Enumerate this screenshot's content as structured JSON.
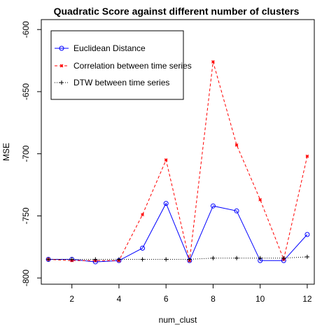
{
  "chart_data": {
    "type": "line",
    "title": "Quadratic Score against different number of clusters",
    "xlabel": "num_clust",
    "ylabel": "MSE",
    "xlim": [
      0.7,
      12.3
    ],
    "ylim": [
      -805,
      -592
    ],
    "xticks": [
      2,
      4,
      6,
      8,
      10,
      12
    ],
    "yticks": [
      -800,
      -750,
      -700,
      -650,
      -600
    ],
    "legend_position": "top-left",
    "x": [
      1,
      2,
      3,
      4,
      5,
      6,
      7,
      8,
      9,
      10,
      11,
      12
    ],
    "series": [
      {
        "name": "Euclidean Distance",
        "color": "#0000ff",
        "line": "solid",
        "marker": "circle",
        "values": [
          -785,
          -785,
          -787,
          -786,
          -776,
          -740,
          -786,
          -742,
          -746,
          -786,
          -786,
          -765
        ]
      },
      {
        "name": "Correlation between time series",
        "color": "#ff0000",
        "line": "dashed",
        "marker": "star",
        "values": [
          -785,
          -786,
          -786,
          -786,
          -749,
          -705,
          -786,
          -626,
          -693,
          -737,
          -785,
          -702
        ]
      },
      {
        "name": "DTW between time series",
        "color": "#000000",
        "line": "dotted",
        "marker": "plus",
        "values": [
          -785,
          -785,
          -785,
          -785,
          -785,
          -785,
          -785,
          -784,
          -784,
          -784,
          -784,
          -783
        ]
      }
    ]
  }
}
